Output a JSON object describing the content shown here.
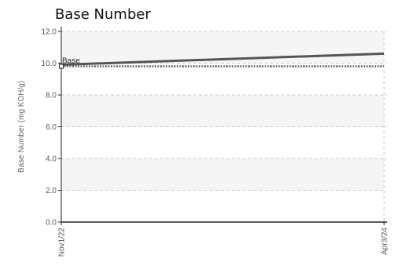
{
  "chart_data": {
    "type": "line",
    "title": "Base Number",
    "ylabel": "Base Number (mg KOH/g)",
    "xlabel": "",
    "ylim": [
      0,
      12
    ],
    "yticks": [
      "0.0",
      "2.0",
      "4.0",
      "6.0",
      "8.0",
      "10.0",
      "12.0"
    ],
    "xticks": [
      "Nov1/22",
      "Apr3/24"
    ],
    "grid": true,
    "colors": {
      "trend": "#555555",
      "baseline": "#666666",
      "band": "#f5f5f5",
      "grid": "#cccccc"
    },
    "series": [
      {
        "x": [
          "Nov1/22",
          "Apr3/24"
        ],
        "y": [
          9.9,
          10.6
        ]
      },
      {
        "x": [
          "Nov1/22",
          "Apr3/24"
        ],
        "y": [
          9.8,
          9.8
        ]
      }
    ],
    "annotation": {
      "text": "Base",
      "x": "Nov1/22",
      "y": 9.8
    }
  }
}
